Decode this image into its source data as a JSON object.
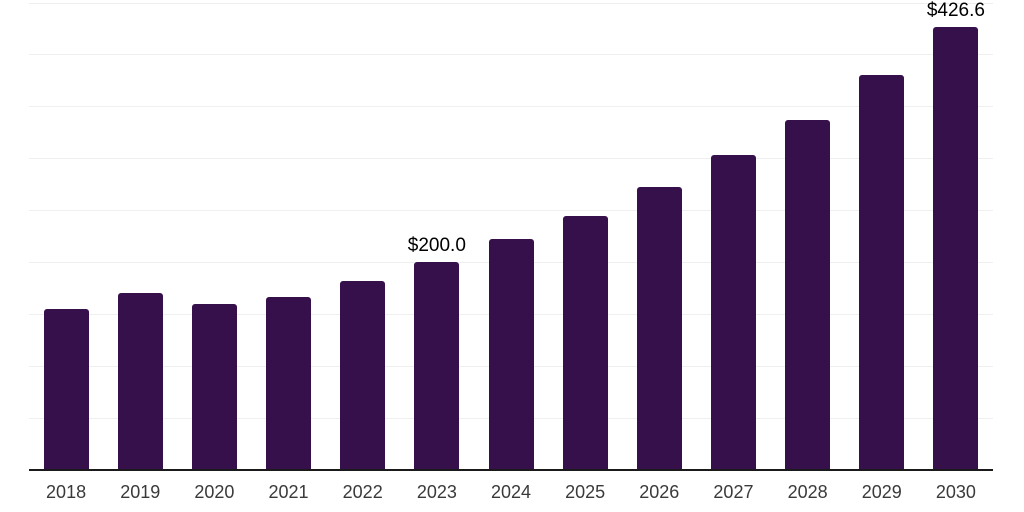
{
  "chart_data": {
    "type": "bar",
    "title": "",
    "xlabel": "",
    "ylabel": "",
    "categories": [
      "2018",
      "2019",
      "2020",
      "2021",
      "2022",
      "2023",
      "2024",
      "2025",
      "2026",
      "2027",
      "2028",
      "2029",
      "2030"
    ],
    "values": [
      155,
      170,
      159,
      166,
      182,
      200.0,
      222,
      244,
      272,
      303,
      337,
      380,
      426.6
    ],
    "data_labels": [
      {
        "category": "2023",
        "text": "$200.0"
      },
      {
        "category": "2030",
        "text": "$426.6"
      }
    ],
    "ylim": [
      0,
      450
    ],
    "grid_step": 50,
    "grid": "horizontal",
    "legend_position": "none",
    "y_tick_labels_visible": false,
    "colors": {
      "bar": "#35104B",
      "axis_line": "#1a1a1a",
      "gridline": "#efefef",
      "tick_label": "#3a3a3a",
      "data_label": "#000000",
      "background": "#ffffff"
    }
  }
}
